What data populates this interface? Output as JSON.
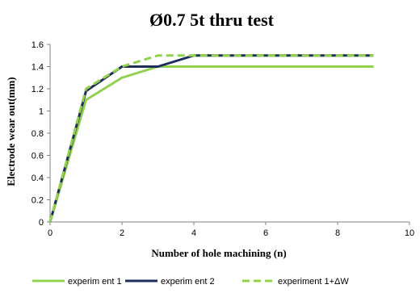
{
  "chart_data": {
    "type": "line",
    "title": "Ø0.7 5t thru test",
    "xlabel": "Number  of hole machining  (n)",
    "ylabel": "Electrode  wear  out(mm)",
    "xlim": [
      0,
      10
    ],
    "ylim": [
      0,
      1.6
    ],
    "x_ticks": [
      "0",
      "2",
      "4",
      "6",
      "8",
      "10"
    ],
    "y_ticks": [
      "0",
      "0.2",
      "0.4",
      "0.6",
      "0.8",
      "1",
      "1.2",
      "1.4",
      "1.6"
    ],
    "grid": false,
    "legend_position": "bottom",
    "series": [
      {
        "name": "experim ent 1",
        "color": "#92d050",
        "dash": "solid",
        "x": [
          0,
          1,
          2,
          3,
          4,
          9
        ],
        "y": [
          0,
          1.1,
          1.3,
          1.4,
          1.4,
          1.4
        ]
      },
      {
        "name": "experim ent 2",
        "color": "#1f2d5c",
        "dash": "solid",
        "x": [
          0,
          1,
          2,
          3,
          4,
          9
        ],
        "y": [
          0,
          1.18,
          1.4,
          1.4,
          1.5,
          1.5
        ]
      },
      {
        "name": "experiment  1+ΔW",
        "color": "#92d050",
        "dash": "dashed",
        "x": [
          0,
          1,
          2,
          3,
          4,
          9
        ],
        "y": [
          0,
          1.2,
          1.4,
          1.5,
          1.5,
          1.5
        ]
      }
    ]
  }
}
